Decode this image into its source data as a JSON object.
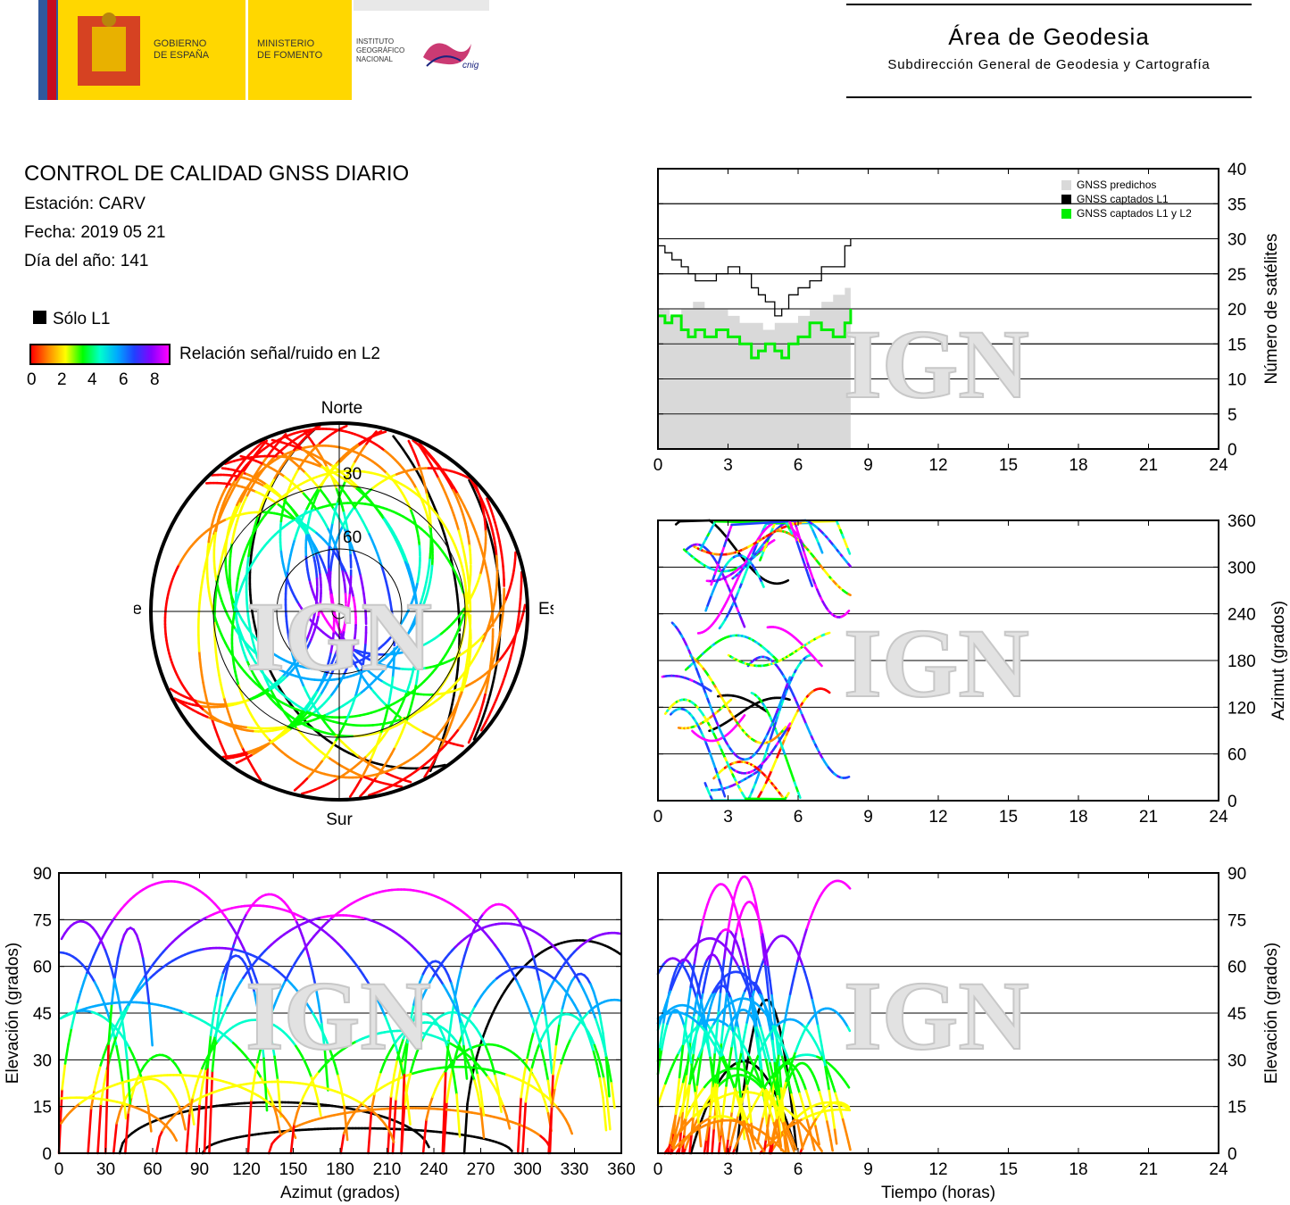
{
  "header": {
    "gov_line1": "GOBIERNO",
    "gov_line2": "DE ESPAÑA",
    "min_line1": "MINISTERIO",
    "min_line2": "DE FOMENTO",
    "ign_line1": "INSTITUTO",
    "ign_line2": "GEOGRÁFICO",
    "ign_line3": "NACIONAL",
    "cnig": "cnig",
    "area_title": "Área de Geodesia",
    "area_subtitle": "Subdirección General de Geodesia y Cartografía"
  },
  "report": {
    "title": "CONTROL DE CALIDAD GNSS DIARIO",
    "station": "Estación: CARV",
    "date": "Fecha: 2019 05 21",
    "doy": "Día del año: 141"
  },
  "legend": {
    "l1_only": "Sólo L1",
    "snr_label": "Relación señal/ruido en L2",
    "snr_ticks": [
      "0",
      "2",
      "4",
      "6",
      "8"
    ],
    "colors": [
      "#ff0000",
      "#ff8800",
      "#ffff00",
      "#00ff00",
      "#00ffcc",
      "#00aaff",
      "#2040ff",
      "#8800ff",
      "#ff00ff"
    ]
  },
  "watermark": "IGN",
  "chart_data": [
    {
      "type": "line",
      "id": "satellite-count",
      "ylabel": "Número de satélites",
      "x_range": [
        0,
        24
      ],
      "ylim": [
        0,
        40
      ],
      "x_ticks": [
        "0",
        "3",
        "6",
        "9",
        "12",
        "15",
        "18",
        "21",
        "24"
      ],
      "y_ticks": [
        "0",
        "5",
        "10",
        "15",
        "20",
        "25",
        "30",
        "35",
        "40"
      ],
      "legend": [
        "GNSS predichos",
        "GNSS captados L1",
        "GNSS captados L1 y L2"
      ],
      "legend_position": "top-right",
      "series": [
        {
          "name": "GNSS predichos",
          "color": "#d9d9d9",
          "x": [
            0,
            0.5,
            1,
            1.5,
            2,
            2.5,
            3,
            3.5,
            4,
            4.5,
            5,
            5.5,
            6,
            6.5,
            7,
            7.5,
            8,
            8.25
          ],
          "y": [
            20,
            19,
            20,
            21,
            20,
            20,
            19,
            18,
            18,
            17,
            18,
            18,
            19,
            20,
            21,
            22,
            23,
            23
          ]
        },
        {
          "name": "GNSS captados L1",
          "color": "#000000",
          "x": [
            0,
            0.3,
            0.6,
            1,
            1.3,
            1.6,
            2,
            2.5,
            3,
            3.5,
            4,
            4.3,
            4.6,
            5,
            5.3,
            5.6,
            6,
            6.5,
            7,
            7.5,
            8,
            8.25
          ],
          "y": [
            29,
            28,
            27,
            26,
            25,
            24,
            24,
            25,
            26,
            25,
            23,
            22,
            21,
            19,
            20,
            22,
            23,
            24,
            26,
            26,
            29,
            30
          ]
        },
        {
          "name": "GNSS captados L1 y L2",
          "color": "#00ee00",
          "x": [
            0,
            0.3,
            0.6,
            1,
            1.3,
            1.6,
            2,
            2.5,
            3,
            3.5,
            4,
            4.3,
            4.6,
            5,
            5.3,
            5.6,
            6,
            6.5,
            7,
            7.5,
            8,
            8.25
          ],
          "y": [
            19,
            18,
            19,
            17,
            16,
            17,
            16,
            17,
            16,
            15,
            13,
            14,
            15,
            14,
            13,
            15,
            16,
            18,
            17,
            16,
            18,
            20
          ]
        }
      ]
    },
    {
      "type": "scatter",
      "id": "azimuth-time",
      "ylabel": "Azimut (grados)",
      "x_range": [
        0,
        24
      ],
      "ylim": [
        0,
        360
      ],
      "x_ticks": [
        "0",
        "3",
        "6",
        "9",
        "12",
        "15",
        "18",
        "21",
        "24"
      ],
      "y_ticks": [
        "0",
        "60",
        "120",
        "180",
        "240",
        "300",
        "360"
      ]
    },
    {
      "type": "scatter",
      "id": "skyplot",
      "directions": {
        "north": "Norte",
        "south": "Sur",
        "east": "Este",
        "west": "Oeste"
      },
      "rings": [
        "30",
        "60"
      ]
    },
    {
      "type": "scatter",
      "id": "elevation-azimuth",
      "xlabel": "Azimut (grados)",
      "ylabel": "Elevación (grados)",
      "x_range": [
        0,
        360
      ],
      "ylim": [
        0,
        90
      ],
      "x_ticks": [
        "0",
        "30",
        "60",
        "90",
        "120",
        "150",
        "180",
        "210",
        "240",
        "270",
        "300",
        "330",
        "360"
      ],
      "y_ticks": [
        "0",
        "15",
        "30",
        "45",
        "60",
        "75",
        "90"
      ]
    },
    {
      "type": "scatter",
      "id": "elevation-time",
      "xlabel": "Tiempo (horas)",
      "ylabel": "Elevación (grados)",
      "x_range": [
        0,
        24
      ],
      "ylim": [
        0,
        90
      ],
      "x_ticks": [
        "0",
        "3",
        "6",
        "9",
        "12",
        "15",
        "18",
        "21",
        "24"
      ],
      "y_ticks": [
        "0",
        "15",
        "30",
        "45",
        "60",
        "75",
        "90"
      ]
    }
  ]
}
